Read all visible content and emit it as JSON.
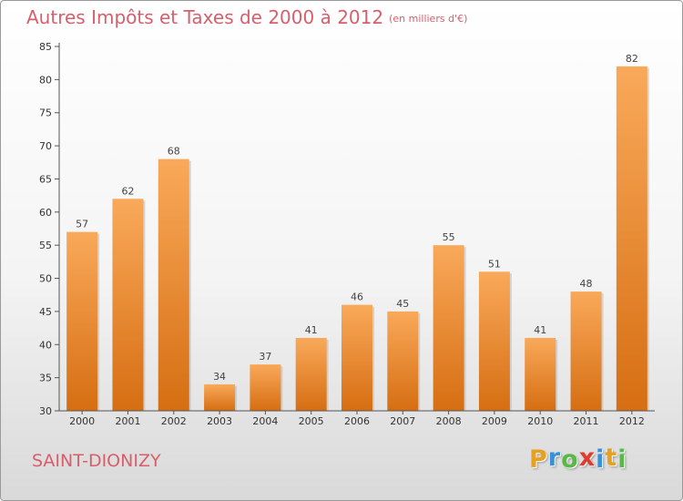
{
  "title": "Autres Impôts et Taxes de 2000 à 2012",
  "subtitle": "(en milliers d'€)",
  "place": "SAINT-DIONIZY",
  "logo": {
    "letters": [
      {
        "char": "P",
        "color": "#e8a020"
      },
      {
        "char": "r",
        "color": "#3a8fd8"
      },
      {
        "char": "o",
        "color": "#58b848"
      },
      {
        "char": "x",
        "color": "#e23a2c"
      },
      {
        "char": "i",
        "color": "#3a8fd8"
      },
      {
        "char": "t",
        "color": "#e8a020"
      },
      {
        "char": "i",
        "color": "#58b848"
      }
    ]
  },
  "colors": {
    "bar_light": "#f9a95a",
    "bar_dark": "#d66e12",
    "title": "#d75f6c"
  },
  "chart_data": {
    "type": "bar",
    "title": "Autres Impôts et Taxes de 2000 à 2012",
    "subtitle": "(en milliers d'€)",
    "xlabel": "",
    "ylabel": "",
    "categories": [
      "2000",
      "2001",
      "2002",
      "2003",
      "2004",
      "2005",
      "2006",
      "2007",
      "2008",
      "2009",
      "2010",
      "2011",
      "2012"
    ],
    "values": [
      57,
      62,
      68,
      34,
      37,
      41,
      46,
      45,
      55,
      51,
      41,
      48,
      82
    ],
    "ylim": [
      30,
      85
    ],
    "yticks": [
      30,
      35,
      40,
      45,
      50,
      55,
      60,
      65,
      70,
      75,
      80,
      85
    ],
    "grid": false,
    "legend": "none",
    "data_labels": true
  }
}
